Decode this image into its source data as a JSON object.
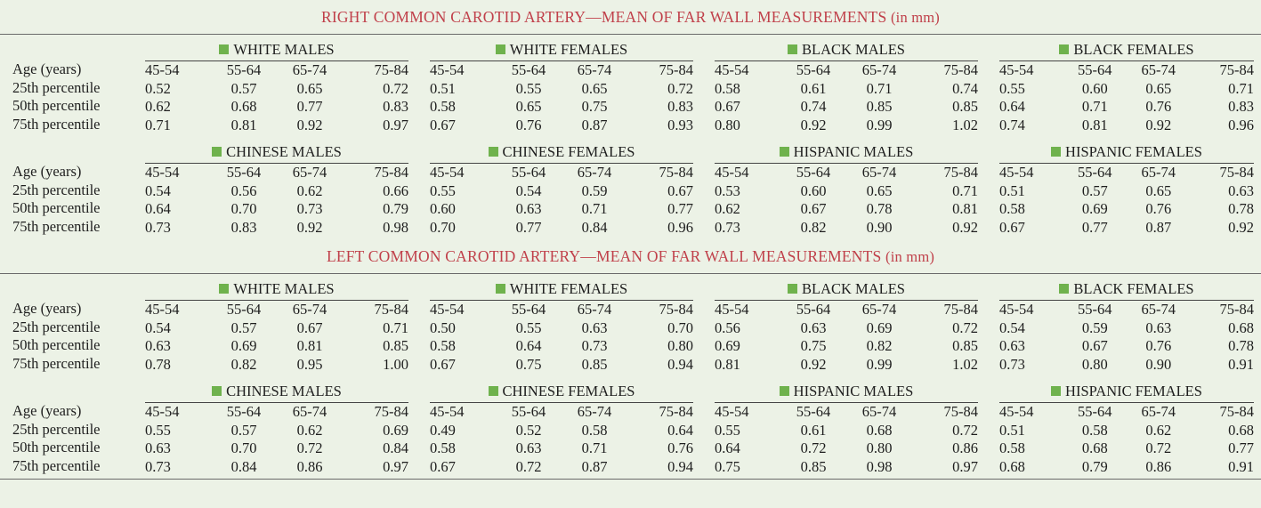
{
  "age_label": "Age (years)",
  "row_labels": [
    "25th percentile",
    "50th percentile",
    "75th percentile"
  ],
  "age_groups": [
    "45-54",
    "55-64",
    "65-74",
    "75-84"
  ],
  "accent_color": "#c0404a",
  "marker_color": "#6fb24d",
  "sections": [
    {
      "title": "RIGHT COMMON CAROTID ARTERY—MEAN OF FAR WALL MEASUREMENTS",
      "unit": "(in mm)",
      "blocks": [
        {
          "groups": [
            {
              "name": "WHITE MALES",
              "rows": [
                [
                  "0.52",
                  "0.57",
                  "0.65",
                  "0.72"
                ],
                [
                  "0.62",
                  "0.68",
                  "0.77",
                  "0.83"
                ],
                [
                  "0.71",
                  "0.81",
                  "0.92",
                  "0.97"
                ]
              ]
            },
            {
              "name": "WHITE FEMALES",
              "rows": [
                [
                  "0.51",
                  "0.55",
                  "0.65",
                  "0.72"
                ],
                [
                  "0.58",
                  "0.65",
                  "0.75",
                  "0.83"
                ],
                [
                  "0.67",
                  "0.76",
                  "0.87",
                  "0.93"
                ]
              ]
            },
            {
              "name": "BLACK MALES",
              "rows": [
                [
                  "0.58",
                  "0.61",
                  "0.71",
                  "0.74"
                ],
                [
                  "0.67",
                  "0.74",
                  "0.85",
                  "0.85"
                ],
                [
                  "0.80",
                  "0.92",
                  "0.99",
                  "1.02"
                ]
              ]
            },
            {
              "name": "BLACK FEMALES",
              "rows": [
                [
                  "0.55",
                  "0.60",
                  "0.65",
                  "0.71"
                ],
                [
                  "0.64",
                  "0.71",
                  "0.76",
                  "0.83"
                ],
                [
                  "0.74",
                  "0.81",
                  "0.92",
                  "0.96"
                ]
              ]
            }
          ]
        },
        {
          "groups": [
            {
              "name": "CHINESE MALES",
              "rows": [
                [
                  "0.54",
                  "0.56",
                  "0.62",
                  "0.66"
                ],
                [
                  "0.64",
                  "0.70",
                  "0.73",
                  "0.79"
                ],
                [
                  "0.73",
                  "0.83",
                  "0.92",
                  "0.98"
                ]
              ]
            },
            {
              "name": "CHINESE FEMALES",
              "rows": [
                [
                  "0.55",
                  "0.54",
                  "0.59",
                  "0.67"
                ],
                [
                  "0.60",
                  "0.63",
                  "0.71",
                  "0.77"
                ],
                [
                  "0.70",
                  "0.77",
                  "0.84",
                  "0.96"
                ]
              ]
            },
            {
              "name": "HISPANIC MALES",
              "rows": [
                [
                  "0.53",
                  "0.60",
                  "0.65",
                  "0.71"
                ],
                [
                  "0.62",
                  "0.67",
                  "0.78",
                  "0.81"
                ],
                [
                  "0.73",
                  "0.82",
                  "0.90",
                  "0.92"
                ]
              ]
            },
            {
              "name": "HISPANIC FEMALES",
              "rows": [
                [
                  "0.51",
                  "0.57",
                  "0.65",
                  "0.63"
                ],
                [
                  "0.58",
                  "0.69",
                  "0.76",
                  "0.78"
                ],
                [
                  "0.67",
                  "0.77",
                  "0.87",
                  "0.92"
                ]
              ]
            }
          ]
        }
      ]
    },
    {
      "title": "LEFT COMMON CAROTID ARTERY—MEAN OF FAR WALL MEASUREMENTS",
      "unit": "(in mm)",
      "blocks": [
        {
          "groups": [
            {
              "name": "WHITE MALES",
              "rows": [
                [
                  "0.54",
                  "0.57",
                  "0.67",
                  "0.71"
                ],
                [
                  "0.63",
                  "0.69",
                  "0.81",
                  "0.85"
                ],
                [
                  "0.78",
                  "0.82",
                  "0.95",
                  "1.00"
                ]
              ]
            },
            {
              "name": "WHITE FEMALES",
              "rows": [
                [
                  "0.50",
                  "0.55",
                  "0.63",
                  "0.70"
                ],
                [
                  "0.58",
                  "0.64",
                  "0.73",
                  "0.80"
                ],
                [
                  "0.67",
                  "0.75",
                  "0.85",
                  "0.94"
                ]
              ]
            },
            {
              "name": "BLACK MALES",
              "rows": [
                [
                  "0.56",
                  "0.63",
                  "0.69",
                  "0.72"
                ],
                [
                  "0.69",
                  "0.75",
                  "0.82",
                  "0.85"
                ],
                [
                  "0.81",
                  "0.92",
                  "0.99",
                  "1.02"
                ]
              ]
            },
            {
              "name": "BLACK FEMALES",
              "rows": [
                [
                  "0.54",
                  "0.59",
                  "0.63",
                  "0.68"
                ],
                [
                  "0.63",
                  "0.67",
                  "0.76",
                  "0.78"
                ],
                [
                  "0.73",
                  "0.80",
                  "0.90",
                  "0.91"
                ]
              ]
            }
          ]
        },
        {
          "groups": [
            {
              "name": "CHINESE MALES",
              "rows": [
                [
                  "0.55",
                  "0.57",
                  "0.62",
                  "0.69"
                ],
                [
                  "0.63",
                  "0.70",
                  "0.72",
                  "0.84"
                ],
                [
                  "0.73",
                  "0.84",
                  "0.86",
                  "0.97"
                ]
              ]
            },
            {
              "name": "CHINESE FEMALES",
              "rows": [
                [
                  "0.49",
                  "0.52",
                  "0.58",
                  "0.64"
                ],
                [
                  "0.58",
                  "0.63",
                  "0.71",
                  "0.76"
                ],
                [
                  "0.67",
                  "0.72",
                  "0.87",
                  "0.94"
                ]
              ]
            },
            {
              "name": "HISPANIC MALES",
              "rows": [
                [
                  "0.55",
                  "0.61",
                  "0.68",
                  "0.72"
                ],
                [
                  "0.64",
                  "0.72",
                  "0.80",
                  "0.86"
                ],
                [
                  "0.75",
                  "0.85",
                  "0.98",
                  "0.97"
                ]
              ]
            },
            {
              "name": "HISPANIC FEMALES",
              "rows": [
                [
                  "0.51",
                  "0.58",
                  "0.62",
                  "0.68"
                ],
                [
                  "0.58",
                  "0.68",
                  "0.72",
                  "0.77"
                ],
                [
                  "0.68",
                  "0.79",
                  "0.86",
                  "0.91"
                ]
              ]
            }
          ]
        }
      ]
    }
  ]
}
